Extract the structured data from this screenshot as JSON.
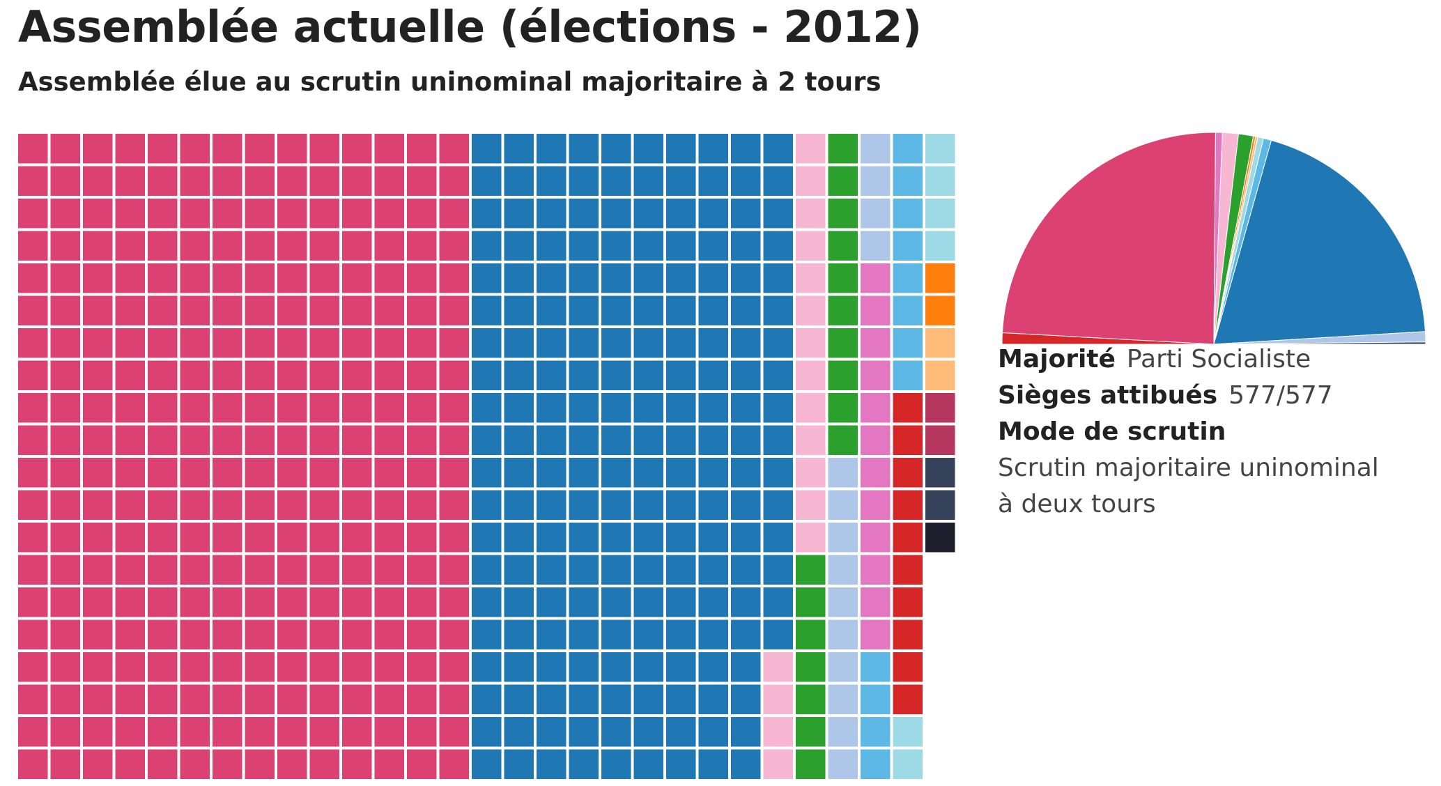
{
  "title": "Assemblée actuelle (élections - 2012)",
  "subtitle": "Assemblée élue au scrutin uninominal majoritaire à 2 tours",
  "info": {
    "majorite_label": "Majorité",
    "majorite_value": "Parti Socialiste",
    "sieges_label": "Sièges attibués",
    "sieges_value": "577/577",
    "mode_label": "Mode de scrutin",
    "mode_value": "Scrutin majoritaire uninominal à deux tours"
  },
  "chart_data": [
    {
      "type": "waffle",
      "rows": 20,
      "total": 577,
      "fill_order": "column-major, left to right, top to bottom",
      "series": [
        {
          "color": "#dc4173",
          "value": 280
        },
        {
          "color": "#1f77b4",
          "value": 196
        },
        {
          "color": "#f7b6d2",
          "value": 17
        },
        {
          "color": "#2ca02c",
          "value": 17
        },
        {
          "color": "#aec7e8",
          "value": 14
        },
        {
          "color": "#e377c2",
          "value": 12
        },
        {
          "color": "#5eb8e6",
          "value": 12
        },
        {
          "color": "#d62728",
          "value": 10
        },
        {
          "color": "#9edae5",
          "value": 6
        },
        {
          "color": "#ff7f0e",
          "value": 2
        },
        {
          "color": "#ffbb78",
          "value": 2
        },
        {
          "color": "#b5365e",
          "value": 2
        },
        {
          "color": "#354259",
          "value": 2
        },
        {
          "color": "#1e1e2d",
          "value": 1
        }
      ]
    },
    {
      "type": "pie",
      "shape": "semicircle",
      "angle_range_degrees": [
        0,
        180
      ],
      "slices": [
        {
          "color": "#d62728",
          "value": 10
        },
        {
          "color": "#dc4173",
          "value": 280
        },
        {
          "color": "#e377c2",
          "value": 6
        },
        {
          "color": "#f7b6d2",
          "value": 14
        },
        {
          "color": "#2ca02c",
          "value": 13
        },
        {
          "color": "#ff7f0e",
          "value": 2
        },
        {
          "color": "#ffbb78",
          "value": 2
        },
        {
          "color": "#9edae5",
          "value": 5
        },
        {
          "color": "#5eb8e6",
          "value": 7
        },
        {
          "color": "#1f77b4",
          "value": 227
        },
        {
          "color": "#aec7e8",
          "value": 9
        },
        {
          "color": "#354259",
          "value": 2
        }
      ]
    }
  ]
}
